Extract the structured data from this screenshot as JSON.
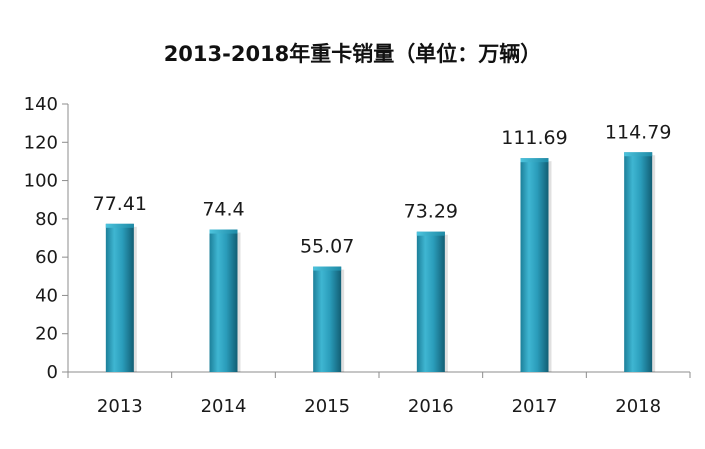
{
  "chart_data": {
    "type": "bar",
    "title": "2013-2018年重卡销量（单位：万辆）",
    "categories": [
      "2013",
      "2014",
      "2015",
      "2016",
      "2017",
      "2018"
    ],
    "values": [
      77.41,
      74.4,
      55.07,
      73.29,
      111.69,
      114.79
    ],
    "data_labels": [
      "77.41",
      "74.4",
      "55.07",
      "73.29",
      "111.69",
      "114.79"
    ],
    "y_ticks": [
      "0",
      "20",
      "40",
      "60",
      "80",
      "100",
      "120",
      "140"
    ],
    "ylim": [
      0,
      140
    ],
    "grid": false,
    "legend": "none",
    "bar_color": "#2a9cba"
  }
}
